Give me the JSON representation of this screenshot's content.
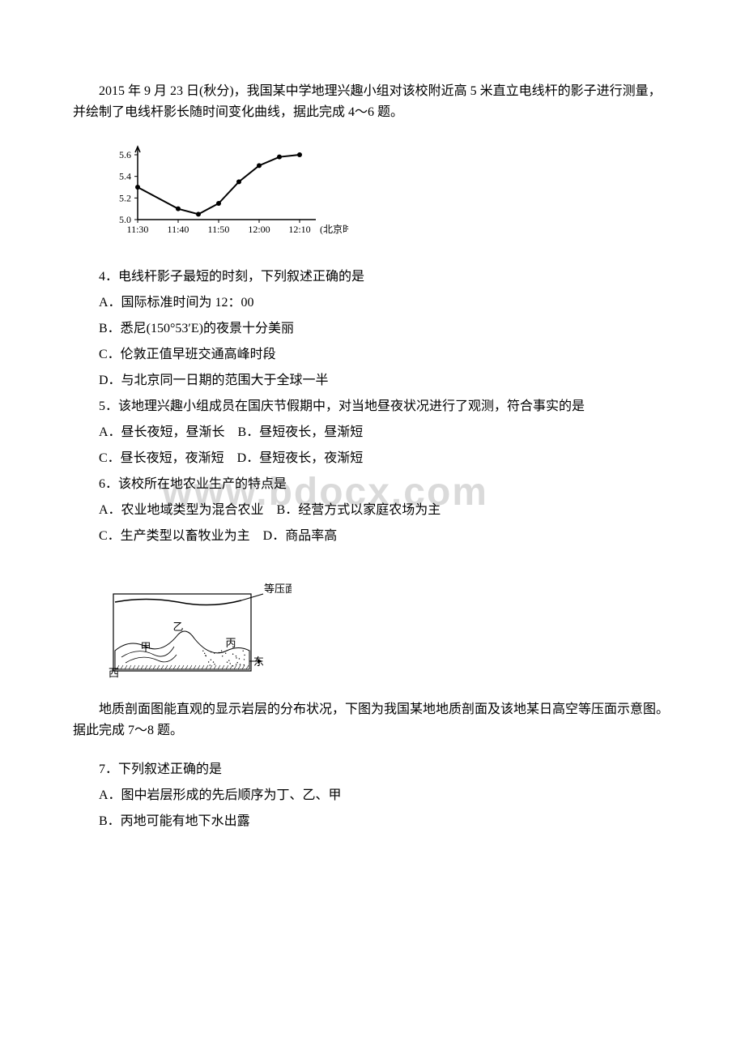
{
  "intro1": "2015 年 9 月 23 日(秋分)，我国某中学地理兴趣小组对该校附近高 5 米直立电线杆的影子进行测量，并绘制了电线杆影长随时间变化曲线，据此完成 4～6 题。",
  "chart": {
    "y_ticks": [
      "5.6",
      "5.4",
      "5.2",
      "5.0"
    ],
    "x_ticks": [
      "11:30",
      "11:40",
      "11:50",
      "12:00",
      "12:10"
    ],
    "x_label": "(北京时间)",
    "data": [
      {
        "x": 0,
        "y": 5.3
      },
      {
        "x": 1,
        "y": 5.1
      },
      {
        "x": 1.5,
        "y": 5.05
      },
      {
        "x": 2,
        "y": 5.15
      },
      {
        "x": 2.5,
        "y": 5.35
      },
      {
        "x": 3,
        "y": 5.5
      },
      {
        "x": 3.5,
        "y": 5.58
      },
      {
        "x": 4,
        "y": 5.6
      }
    ],
    "line_color": "#000000",
    "marker_color": "#000000",
    "axis_color": "#000000",
    "font_size": 12
  },
  "q4": {
    "stem": "4．电线杆影子最短的时刻，下列叙述正确的是",
    "A": "A．国际标准时间为 12：00",
    "B": "B．悉尼(150°53′E)的夜景十分美丽",
    "C": "C．伦敦正值早班交通高峰时段",
    "D": "D．与北京同一日期的范围大于全球一半"
  },
  "q5": {
    "stem": "5．该地理兴趣小组成员在国庆节假期中，对当地昼夜状况进行了观测，符合事实的是",
    "AB": "A．昼长夜短，昼渐长　B．昼短夜长，昼渐短",
    "CD": "C．昼长夜短，夜渐短　D．昼短夜长，夜渐短"
  },
  "q6": {
    "stem": "6．该校所在地农业生产的特点是",
    "AB": "A．农业地域类型为混合农业　B．经营方式以家庭农场为主",
    "CD": "C．生产类型以畜牧业为主　D．商品率高"
  },
  "diagram": {
    "label_top": "等压面",
    "label_yi": "乙",
    "label_jia": "甲",
    "label_bing": "丙",
    "label_xi": "西",
    "label_dong": "东"
  },
  "intro2": "地质剖面图能直观的显示岩层的分布状况，下图为我国某地地质剖面及该地某日高空等压面示意图。据此完成 7～8 题。",
  "q7": {
    "stem": "7．下列叙述正确的是",
    "A": "A．图中岩层形成的先后顺序为丁、乙、甲",
    "B": "B．丙地可能有地下水出露"
  },
  "watermark": "www.bdocx.com"
}
